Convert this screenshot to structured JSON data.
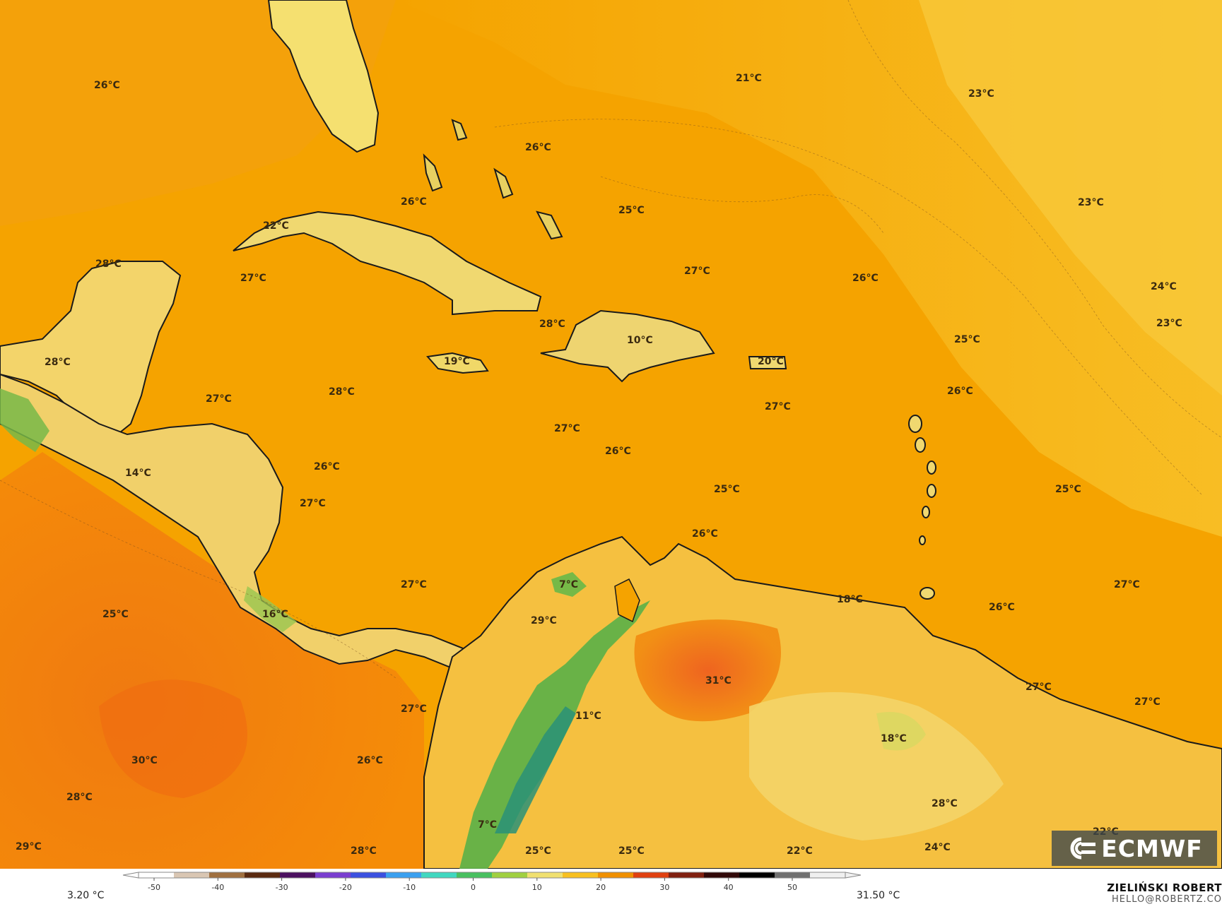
{
  "map": {
    "labels": [
      {
        "text": "26°C"
      },
      {
        "text": "21°C"
      },
      {
        "text": "23°C"
      },
      {
        "text": "26°C"
      },
      {
        "text": "26°C"
      },
      {
        "text": "25°C"
      },
      {
        "text": "23°C"
      },
      {
        "text": "22°C"
      },
      {
        "text": "28°C"
      },
      {
        "text": "27°C"
      },
      {
        "text": "27°C"
      },
      {
        "text": "26°C"
      },
      {
        "text": "24°C"
      },
      {
        "text": "23°C"
      },
      {
        "text": "28°C"
      },
      {
        "text": "10°C"
      },
      {
        "text": "25°C"
      },
      {
        "text": "28°C"
      },
      {
        "text": "19°C"
      },
      {
        "text": "20°C"
      },
      {
        "text": "28°C"
      },
      {
        "text": "26°C"
      },
      {
        "text": "27°C"
      },
      {
        "text": "27°C"
      },
      {
        "text": "27°C"
      },
      {
        "text": "26°C"
      },
      {
        "text": "14°C"
      },
      {
        "text": "26°C"
      },
      {
        "text": "27°C"
      },
      {
        "text": "25°C"
      },
      {
        "text": "25°C"
      },
      {
        "text": "26°C"
      },
      {
        "text": "7°C"
      },
      {
        "text": "18°C"
      },
      {
        "text": "27°C"
      },
      {
        "text": "27°C"
      },
      {
        "text": "26°C"
      },
      {
        "text": "25°C"
      },
      {
        "text": "16°C"
      },
      {
        "text": "29°C"
      },
      {
        "text": "31°C"
      },
      {
        "text": "27°C"
      },
      {
        "text": "27°C"
      },
      {
        "text": "27°C"
      },
      {
        "text": "11°C"
      },
      {
        "text": "18°C"
      },
      {
        "text": "30°C"
      },
      {
        "text": "26°C"
      },
      {
        "text": "28°C"
      },
      {
        "text": "28°C"
      },
      {
        "text": "7°C"
      },
      {
        "text": "22°C"
      },
      {
        "text": "29°C"
      },
      {
        "text": "28°C"
      },
      {
        "text": "25°C"
      },
      {
        "text": "25°C"
      },
      {
        "text": "22°C"
      },
      {
        "text": "24°C"
      }
    ]
  },
  "legend": {
    "min_label": "3.20 °C",
    "max_label": "31.50 °C",
    "ticks": [
      "-50",
      "-40",
      "-30",
      "-20",
      "-10",
      "0",
      "10",
      "20",
      "30",
      "40",
      "50"
    ],
    "colors": [
      "#ffffff",
      "#d9c6b3",
      "#a07040",
      "#5a2a10",
      "#4b1060",
      "#7a3ed0",
      "#3b50e0",
      "#3aa0f0",
      "#40d8c0",
      "#48c060",
      "#a0d040",
      "#f0e070",
      "#f8c020",
      "#f09000",
      "#e04010",
      "#802010",
      "#300808",
      "#000000",
      "#707070",
      "#f0f0f0"
    ]
  },
  "credit": {
    "name": "ZIELIŃSKI ROBERT",
    "email": "HELLO@ROBERTZ.CO"
  },
  "logo": {
    "text": "ECMWF"
  },
  "colors": {
    "ocean": "#f5a300",
    "land_warm": "#f8d860",
    "land_cool": "#58b040",
    "hot": "#f07018",
    "cool_ocean": "#f8c020"
  }
}
